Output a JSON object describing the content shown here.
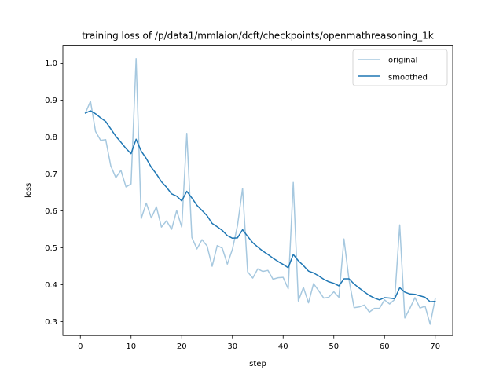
{
  "chart_data": {
    "type": "line",
    "title": "training loss of /p/data1/mmlaion/dcft/checkpoints/openmathreasoning_1k",
    "xlabel": "step",
    "ylabel": "loss",
    "xlim": [
      -3.45,
      73.45
    ],
    "ylim": [
      0.2625,
      1.0485
    ],
    "xticks": [
      0,
      10,
      20,
      30,
      40,
      50,
      60,
      70
    ],
    "yticks": [
      0.3,
      0.4,
      0.5,
      0.6,
      0.7,
      0.8,
      0.9,
      1.0
    ],
    "ytick_labels": [
      "0.3",
      "0.4",
      "0.5",
      "0.6",
      "0.7",
      "0.8",
      "0.9",
      "1.0"
    ],
    "legend_position": "top-right",
    "grid": false,
    "series": [
      {
        "name": "original",
        "color": "#a6c8df",
        "x": [
          1,
          2,
          3,
          4,
          5,
          6,
          7,
          8,
          9,
          10,
          11,
          12,
          13,
          14,
          15,
          16,
          17,
          18,
          19,
          20,
          21,
          22,
          23,
          24,
          25,
          26,
          27,
          28,
          29,
          30,
          31,
          32,
          33,
          34,
          35,
          36,
          37,
          38,
          39,
          40,
          41,
          42,
          43,
          44,
          45,
          46,
          47,
          48,
          49,
          50,
          51,
          52,
          53,
          54,
          55,
          56,
          57,
          58,
          59,
          60,
          61,
          62,
          63,
          64,
          65,
          66,
          67,
          68,
          69,
          70
        ],
        "y": [
          0.865,
          0.897,
          0.815,
          0.791,
          0.793,
          0.722,
          0.69,
          0.71,
          0.665,
          0.673,
          1.012,
          0.579,
          0.621,
          0.581,
          0.611,
          0.556,
          0.573,
          0.55,
          0.601,
          0.556,
          0.81,
          0.528,
          0.497,
          0.522,
          0.505,
          0.45,
          0.506,
          0.499,
          0.456,
          0.496,
          0.56,
          0.661,
          0.435,
          0.418,
          0.443,
          0.436,
          0.439,
          0.415,
          0.419,
          0.42,
          0.389,
          0.677,
          0.356,
          0.393,
          0.351,
          0.403,
          0.384,
          0.364,
          0.366,
          0.381,
          0.366,
          0.524,
          0.413,
          0.338,
          0.34,
          0.345,
          0.326,
          0.336,
          0.336,
          0.359,
          0.348,
          0.36,
          0.562,
          0.31,
          0.336,
          0.365,
          0.337,
          0.342,
          0.293,
          0.362
        ]
      },
      {
        "name": "smoothed",
        "color": "#1f77b4",
        "x": [
          1,
          2,
          3,
          4,
          5,
          6,
          7,
          8,
          9,
          10,
          11,
          12,
          13,
          14,
          15,
          16,
          17,
          18,
          19,
          20,
          21,
          22,
          23,
          24,
          25,
          26,
          27,
          28,
          29,
          30,
          31,
          32,
          33,
          34,
          35,
          36,
          37,
          38,
          39,
          40,
          41,
          42,
          43,
          44,
          45,
          46,
          47,
          48,
          49,
          50,
          51,
          52,
          53,
          54,
          55,
          56,
          57,
          58,
          59,
          60,
          61,
          62,
          63,
          64,
          65,
          66,
          67,
          68,
          69,
          70
        ],
        "y": [
          0.865,
          0.871,
          0.863,
          0.852,
          0.842,
          0.822,
          0.802,
          0.786,
          0.769,
          0.755,
          0.794,
          0.762,
          0.742,
          0.718,
          0.7,
          0.679,
          0.664,
          0.646,
          0.64,
          0.627,
          0.653,
          0.635,
          0.615,
          0.601,
          0.587,
          0.566,
          0.557,
          0.547,
          0.533,
          0.526,
          0.527,
          0.549,
          0.531,
          0.514,
          0.502,
          0.491,
          0.482,
          0.472,
          0.463,
          0.455,
          0.446,
          0.482,
          0.465,
          0.452,
          0.437,
          0.432,
          0.424,
          0.415,
          0.408,
          0.404,
          0.397,
          0.416,
          0.416,
          0.402,
          0.391,
          0.381,
          0.371,
          0.364,
          0.359,
          0.365,
          0.364,
          0.362,
          0.392,
          0.38,
          0.375,
          0.374,
          0.37,
          0.366,
          0.354,
          0.355
        ]
      }
    ]
  }
}
